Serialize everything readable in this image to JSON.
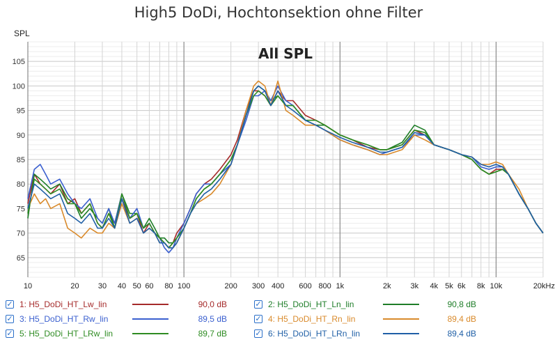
{
  "title": "High5 DoDi, Hochtonsektion ohne Filter",
  "chart_data": {
    "type": "line",
    "title": "All SPL",
    "ylabel": "SPL",
    "x_scale": "log",
    "xlim": [
      10,
      20000
    ],
    "ylim": [
      61,
      109
    ],
    "grid": true,
    "y_ticks": [
      65,
      70,
      75,
      80,
      85,
      90,
      95,
      100,
      105
    ],
    "x_ticks": [
      {
        "v": 10,
        "label": "10"
      },
      {
        "v": 20,
        "label": "20"
      },
      {
        "v": 30,
        "label": "30"
      },
      {
        "v": 40,
        "label": "40"
      },
      {
        "v": 50,
        "label": "50"
      },
      {
        "v": 60,
        "label": "60"
      },
      {
        "v": 80,
        "label": "80"
      },
      {
        "v": 100,
        "label": "100"
      },
      {
        "v": 200,
        "label": "200"
      },
      {
        "v": 300,
        "label": "300"
      },
      {
        "v": 400,
        "label": "400"
      },
      {
        "v": 600,
        "label": "600"
      },
      {
        "v": 800,
        "label": "800"
      },
      {
        "v": 1000,
        "label": "1k"
      },
      {
        "v": 2000,
        "label": "2k"
      },
      {
        "v": 3000,
        "label": "3k"
      },
      {
        "v": 4000,
        "label": "4k"
      },
      {
        "v": 5000,
        "label": "5k"
      },
      {
        "v": 6000,
        "label": "6k"
      },
      {
        "v": 8000,
        "label": "8k"
      },
      {
        "v": 10000,
        "label": "10k"
      },
      {
        "v": 20000,
        "label": "20kHz"
      }
    ],
    "x": [
      10,
      11,
      12,
      13,
      14,
      16,
      18,
      20,
      22,
      25,
      28,
      30,
      33,
      36,
      40,
      45,
      50,
      55,
      60,
      65,
      70,
      75,
      80,
      85,
      90,
      100,
      110,
      120,
      135,
      150,
      170,
      200,
      220,
      250,
      280,
      300,
      330,
      360,
      400,
      450,
      500,
      600,
      700,
      800,
      1000,
      1200,
      1500,
      1800,
      2000,
      2500,
      3000,
      3500,
      4000,
      5000,
      6000,
      7000,
      8000,
      9000,
      10000,
      11000,
      12000,
      14000,
      16000,
      18000,
      20000
    ],
    "series": [
      {
        "name": "1: H5_DoDi_HT_Lw_lin",
        "color": "#a52a2a",
        "level_label": "90,0 dB",
        "values": [
          76,
          82,
          80,
          79,
          78,
          80,
          76,
          77,
          74,
          76,
          72,
          71,
          74,
          72,
          77,
          73,
          74,
          70,
          72,
          70,
          69,
          68,
          67,
          68,
          70,
          72,
          75,
          78,
          80,
          81,
          83,
          86,
          89,
          95,
          99,
          99,
          98,
          96,
          99,
          97,
          97,
          94,
          93,
          92,
          90,
          89,
          87.5,
          87,
          87,
          88,
          91,
          90,
          88,
          87,
          86,
          85,
          83,
          82,
          83,
          83,
          82,
          78,
          75,
          72,
          70
        ]
      },
      {
        "name": "2: H5_DoDi_HT_Ln_lin",
        "color": "#1e7d28",
        "level_label": "90,8 dB",
        "values": [
          73,
          82,
          81,
          80,
          79,
          80,
          77,
          76,
          73,
          75,
          73,
          72,
          75,
          71,
          78,
          74,
          74,
          71,
          73,
          71,
          69,
          69,
          68,
          68,
          69,
          71,
          74,
          77,
          79,
          80,
          82,
          85,
          88,
          94,
          99,
          100,
          99,
          97,
          98,
          96,
          96,
          93,
          92,
          92,
          90,
          89,
          88,
          87,
          87,
          88.5,
          92,
          91,
          88,
          87,
          86,
          85,
          83,
          82,
          82.5,
          83,
          82,
          78,
          75,
          72,
          70
        ]
      },
      {
        "name": "3: H5_DoDi_HT_Rw_lin",
        "color": "#3a5fcf",
        "level_label": "89,5 dB",
        "values": [
          77,
          83,
          84,
          82,
          80,
          81,
          78,
          76,
          75,
          77,
          73,
          72,
          75,
          72,
          78,
          73,
          75,
          71,
          72,
          70,
          69,
          67,
          66,
          67,
          69,
          72,
          75,
          78,
          80,
          80,
          82,
          84,
          88,
          93,
          98,
          98,
          99,
          97,
          100,
          97,
          96,
          93,
          92,
          91,
          89,
          88,
          87,
          86,
          86.5,
          87.5,
          90,
          90,
          88,
          87,
          86,
          85.5,
          83.5,
          83,
          83.5,
          83.5,
          82,
          78,
          75,
          72,
          70
        ]
      },
      {
        "name": "4: H5_DoDi_HT_Rn_lin",
        "color": "#d98a2b",
        "level_label": "89,4 dB",
        "values": [
          75,
          78,
          76,
          77,
          75,
          76,
          71,
          70,
          69,
          71,
          70,
          70,
          72,
          71,
          76,
          72,
          73,
          70,
          71,
          70,
          68,
          68,
          67,
          67,
          68,
          71,
          74,
          76,
          77,
          78,
          80,
          84,
          88,
          95,
          100,
          101,
          100,
          96,
          101,
          95,
          94,
          92,
          92,
          91,
          89,
          88,
          87,
          86,
          86,
          87,
          90,
          89,
          88,
          87,
          86,
          85.5,
          84,
          84,
          84.5,
          84,
          82,
          79,
          75,
          72,
          70
        ]
      },
      {
        "name": "5: H5_DoDi_HT_LRw_lin",
        "color": "#2e8b22",
        "level_label": "89,7 dB",
        "values": [
          74,
          81,
          80,
          79,
          78,
          79,
          76,
          76,
          74,
          76,
          72,
          71,
          74,
          71,
          78,
          73,
          74,
          71,
          72,
          70,
          69,
          68,
          67,
          68,
          69,
          71,
          74,
          77,
          79,
          80,
          82,
          85,
          88,
          94,
          98,
          99,
          98,
          96,
          98,
          96,
          96,
          93,
          93,
          92,
          90,
          89,
          88,
          87,
          87,
          88,
          91,
          90.5,
          88,
          87,
          86,
          85,
          83,
          82,
          82.5,
          83,
          82,
          78,
          75,
          72,
          70
        ]
      },
      {
        "name": "6: H5_DoDi_HT_LRn_lin",
        "color": "#1f5fa6",
        "level_label": "89,4 dB",
        "values": [
          75,
          80,
          79,
          78,
          77,
          78,
          74,
          73,
          72,
          74,
          71,
          71,
          73,
          71,
          77,
          72,
          73,
          70,
          71,
          70,
          68,
          68,
          67,
          67,
          68,
          71,
          74,
          76,
          78,
          79,
          81,
          84,
          88,
          94,
          99,
          100,
          99,
          96,
          99,
          96,
          95,
          93,
          92,
          91,
          89.5,
          88.5,
          87.5,
          86.5,
          86.5,
          87.5,
          90.5,
          90,
          88,
          87,
          86,
          85.5,
          84,
          83.5,
          84,
          83.5,
          82,
          78,
          75,
          72,
          70
        ]
      }
    ]
  },
  "legend": {
    "check_glyph": "✓"
  }
}
